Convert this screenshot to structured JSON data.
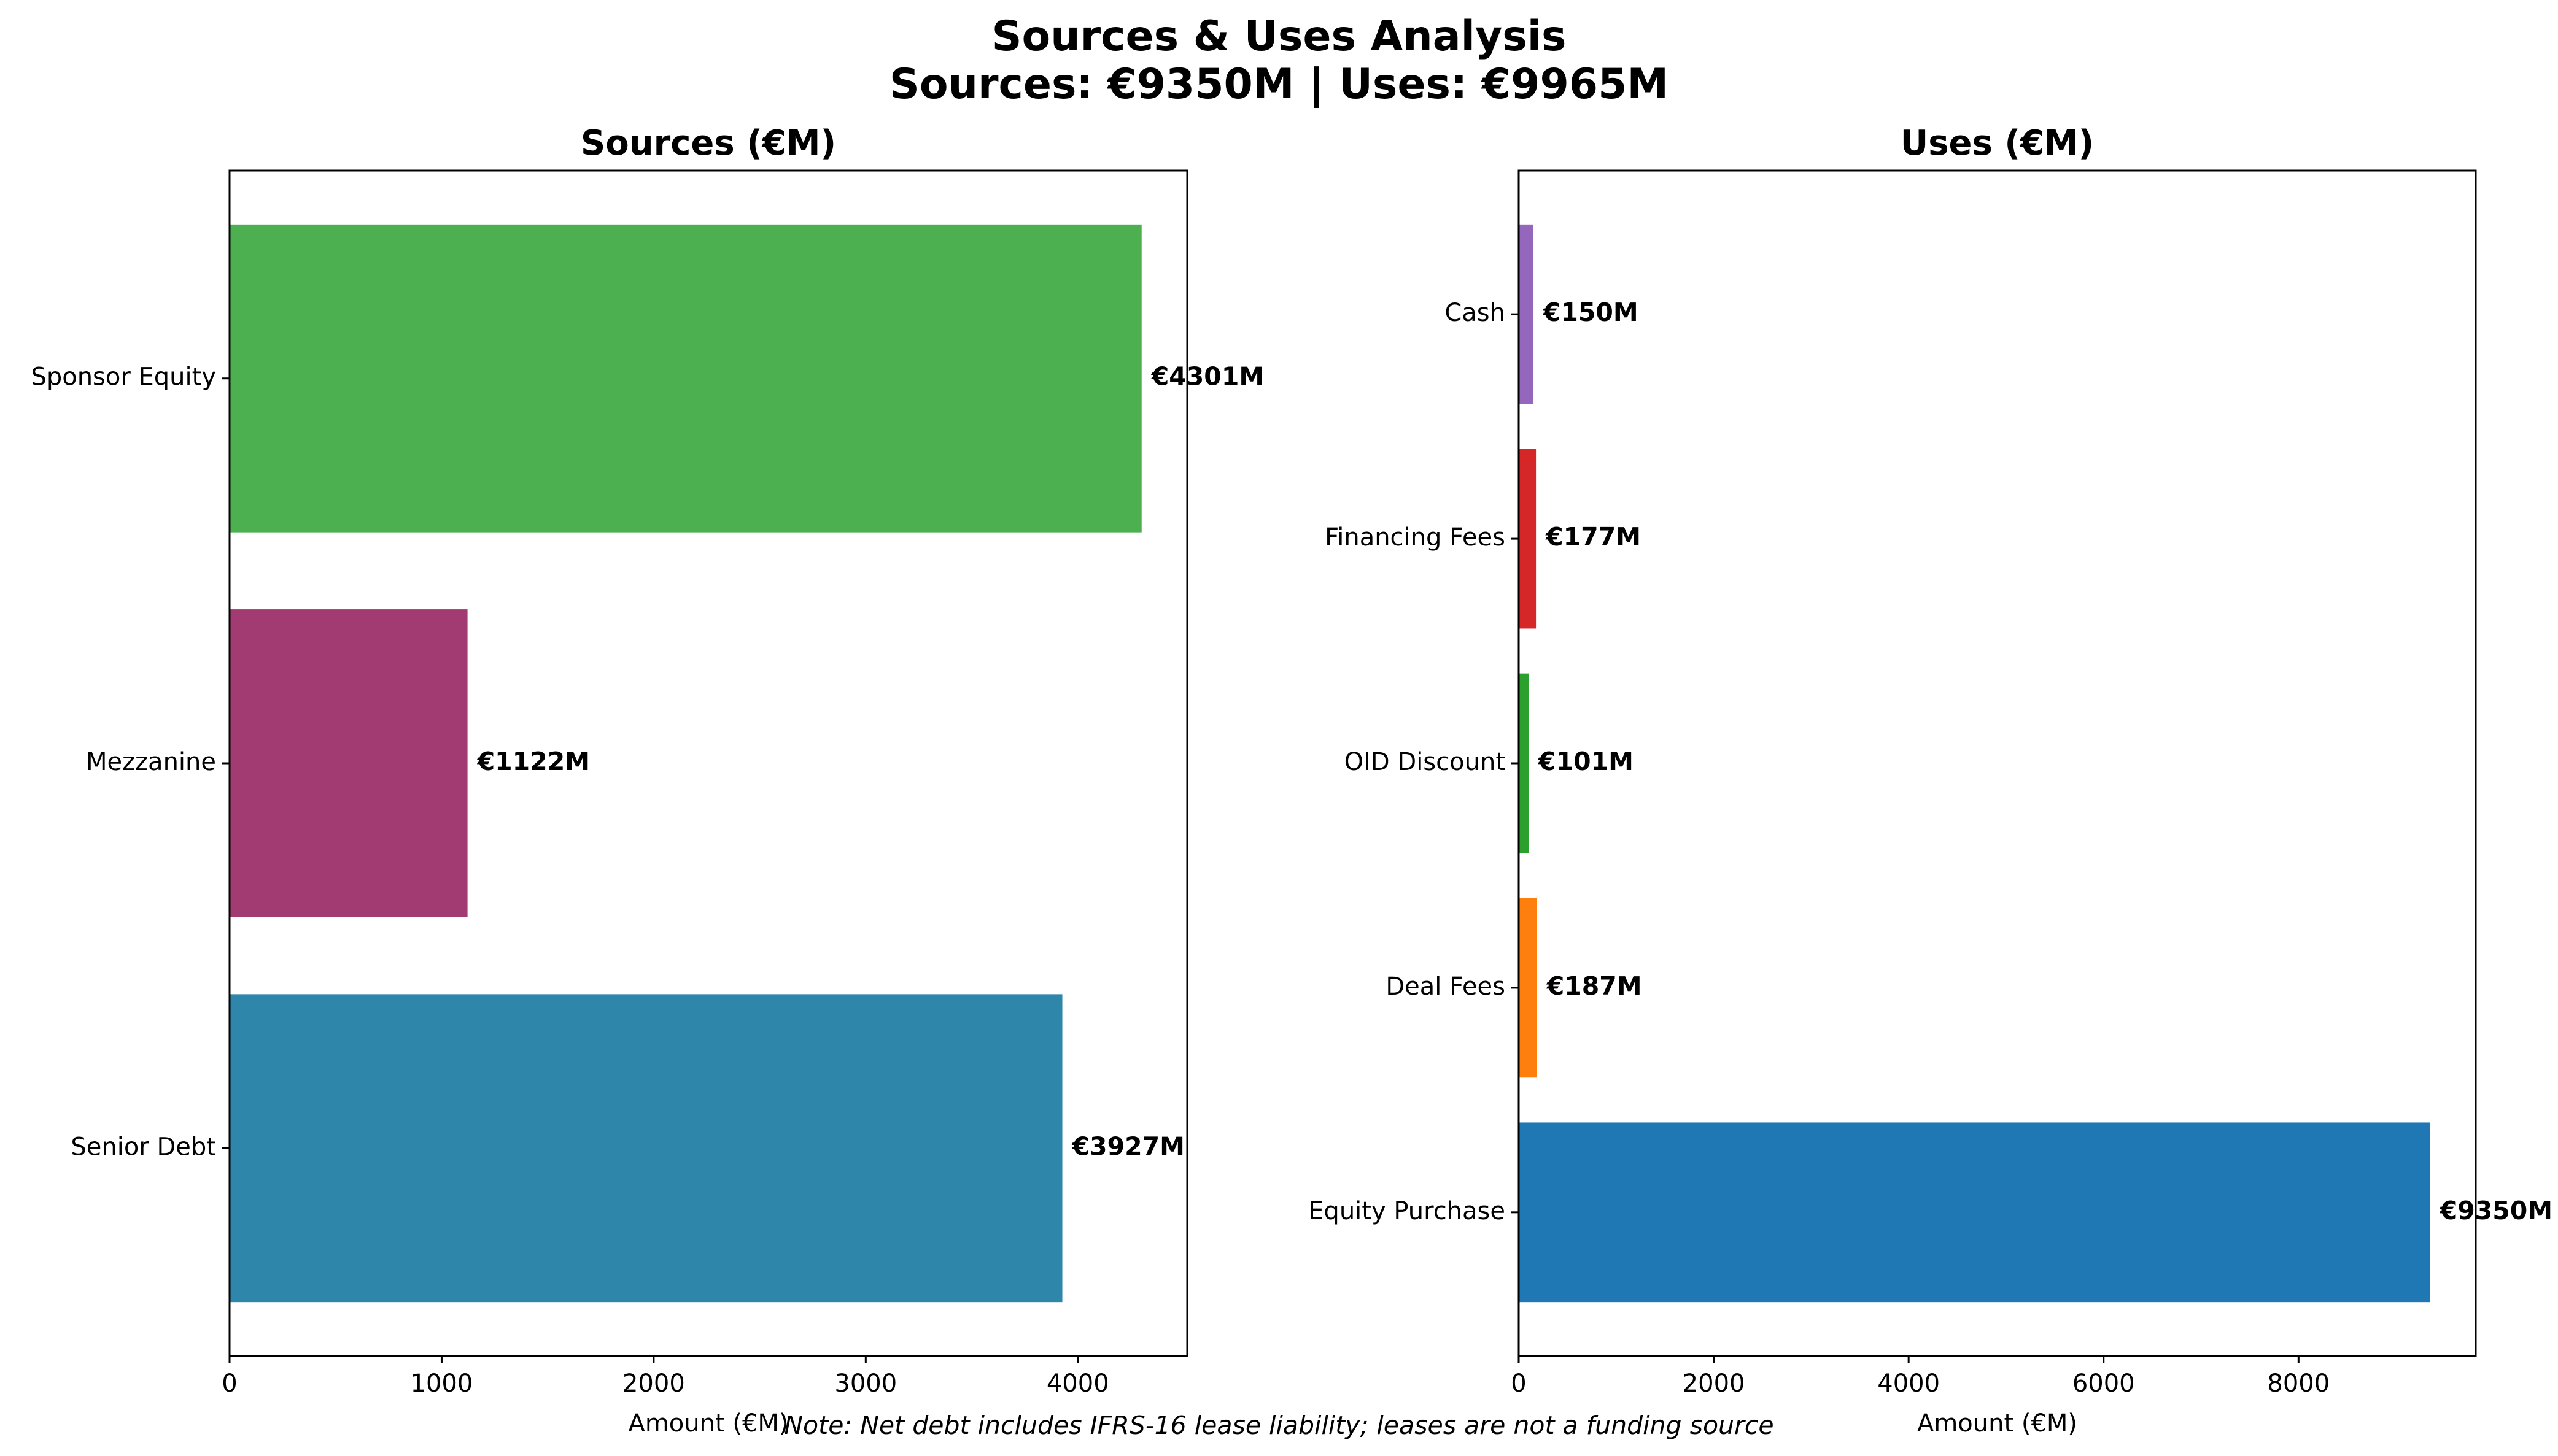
{
  "suptitle": {
    "line1": "Sources & Uses Analysis",
    "line2": "Sources: €9350M | Uses: €9965M"
  },
  "note": "Note: Net debt includes IFRS-16 lease liability; leases are not a funding source",
  "chart_data": [
    {
      "type": "bar",
      "orientation": "horizontal",
      "title": "Sources (€M)",
      "xlabel": "Amount (€M)",
      "ylabel": "",
      "xlim": [
        0,
        4516
      ],
      "xticks": [
        0,
        1000,
        2000,
        3000,
        4000
      ],
      "categories": [
        "Senior Debt",
        "Mezzanine",
        "Sponsor Equity"
      ],
      "values": [
        3927,
        1122,
        4301
      ],
      "data_labels": [
        "€3927M",
        "€1122M",
        "€4301M"
      ],
      "colors": [
        "#2e86ab",
        "#a23b72",
        "#4caf50"
      ]
    },
    {
      "type": "bar",
      "orientation": "horizontal",
      "title": "Uses (€M)",
      "xlabel": "Amount (€M)",
      "ylabel": "",
      "xlim": [
        0,
        9818
      ],
      "xticks": [
        0,
        2000,
        4000,
        6000,
        8000
      ],
      "categories": [
        "Equity Purchase",
        "Deal Fees",
        "OID Discount",
        "Financing Fees",
        "Cash"
      ],
      "values": [
        9350,
        187,
        101,
        177,
        150
      ],
      "data_labels": [
        "€9350M",
        "€187M",
        "€101M",
        "€177M",
        "€150M"
      ],
      "colors": [
        "#1f77b4",
        "#ff7f0e",
        "#2ca02c",
        "#d62728",
        "#9467bd"
      ]
    }
  ]
}
